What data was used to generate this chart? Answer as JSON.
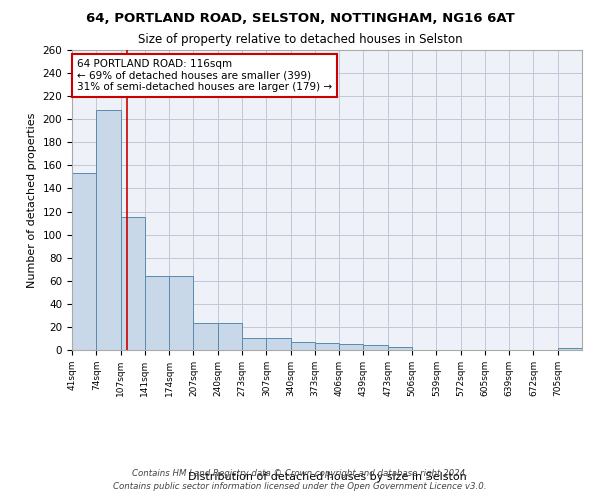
{
  "title1": "64, PORTLAND ROAD, SELSTON, NOTTINGHAM, NG16 6AT",
  "title2": "Size of property relative to detached houses in Selston",
  "xlabel": "Distribution of detached houses by size in Selston",
  "ylabel": "Number of detached properties",
  "bin_labels": [
    "41sqm",
    "74sqm",
    "107sqm",
    "141sqm",
    "174sqm",
    "207sqm",
    "240sqm",
    "273sqm",
    "307sqm",
    "340sqm",
    "373sqm",
    "406sqm",
    "439sqm",
    "473sqm",
    "506sqm",
    "539sqm",
    "572sqm",
    "605sqm",
    "639sqm",
    "672sqm",
    "705sqm"
  ],
  "bar_heights": [
    153,
    208,
    115,
    64,
    64,
    23,
    23,
    10,
    10,
    7,
    6,
    5,
    4,
    3,
    0,
    0,
    0,
    0,
    0,
    0,
    2
  ],
  "bar_color": "#c8d8e8",
  "bar_edge_color": "#5a8ab0",
  "grid_color": "#c0c8d8",
  "background_color": "#eef2f8",
  "vline_color": "#cc0000",
  "annotation_line1": "64 PORTLAND ROAD: 116sqm",
  "annotation_line2": "← 69% of detached houses are smaller (399)",
  "annotation_line3": "31% of semi-detached houses are larger (179) →",
  "annotation_box_color": "#ffffff",
  "annotation_box_edge": "#cc0000",
  "ylim": [
    0,
    260
  ],
  "yticks": [
    0,
    20,
    40,
    60,
    80,
    100,
    120,
    140,
    160,
    180,
    200,
    220,
    240,
    260
  ],
  "footnote1": "Contains HM Land Registry data © Crown copyright and database right 2024.",
  "footnote2": "Contains public sector information licensed under the Open Government Licence v3.0."
}
